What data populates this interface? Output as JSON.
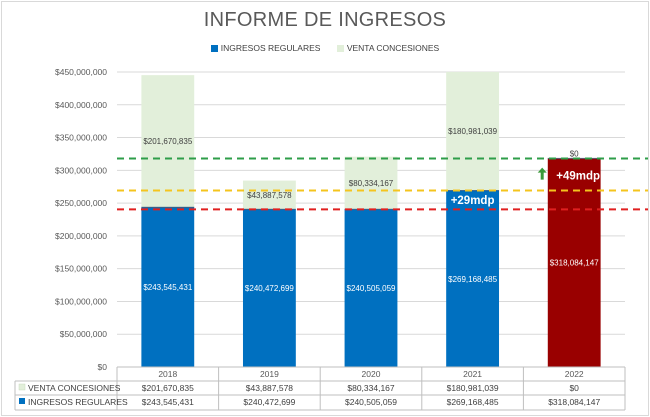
{
  "chart_data": {
    "type": "bar",
    "stacked": true,
    "title": "INFORME DE INGRESOS",
    "categories": [
      "2018",
      "2019",
      "2020",
      "2021",
      "2022"
    ],
    "ylim": [
      0,
      450000000
    ],
    "yticks": [
      0,
      50000000,
      100000000,
      150000000,
      200000000,
      250000000,
      300000000,
      350000000,
      400000000,
      450000000
    ],
    "ytick_labels": [
      "$0",
      "$50,000,000",
      "$100,000,000",
      "$150,000,000",
      "$200,000,000",
      "$250,000,000",
      "$300,000,000",
      "$350,000,000",
      "$400,000,000",
      "$450,000,000"
    ],
    "legend_position": "top",
    "series": [
      {
        "name": "INGRESOS REGULARES",
        "color": "#0070c0",
        "values": [
          243545431,
          240472699,
          240505059,
          269168485,
          318084147
        ],
        "labels": [
          "$243,545,431",
          "$240,472,699",
          "$240,505,059",
          "$269,168,485",
          "$318,084,147"
        ],
        "point_colors": [
          "#0070c0",
          "#0070c0",
          "#0070c0",
          "#0070c0",
          "#990000"
        ]
      },
      {
        "name": "VENTA CONCESIONES",
        "color": "#e2efda",
        "values": [
          201670835,
          43887578,
          80334167,
          180981039,
          0
        ],
        "labels": [
          "$201,670,835",
          "$43,887,578",
          "$80,334,167",
          "$180,981,039",
          "$0"
        ]
      }
    ],
    "reference_lines": [
      {
        "value": 318084147,
        "color": "#2e9e49"
      },
      {
        "value": 269168485,
        "color": "#f4c41e"
      },
      {
        "value": 240472699,
        "color": "#e02020"
      }
    ],
    "annotations": [
      {
        "text": "+29mdp",
        "category": "2021",
        "value": 255000000
      },
      {
        "text": "+49mdp",
        "category": "2022",
        "value": 292000000,
        "arrow": "up",
        "arrow_color": "#3a9a3a"
      }
    ],
    "data_table": {
      "rows": [
        {
          "name": "VENTA CONCESIONES",
          "values": [
            "$201,670,835",
            "$43,887,578",
            "$80,334,167",
            "$180,981,039",
            "$0"
          ]
        },
        {
          "name": "INGRESOS REGULARES",
          "values": [
            "$243,545,431",
            "$240,472,699",
            "$240,505,059",
            "$269,168,485",
            "$318,084,147"
          ]
        }
      ]
    }
  }
}
